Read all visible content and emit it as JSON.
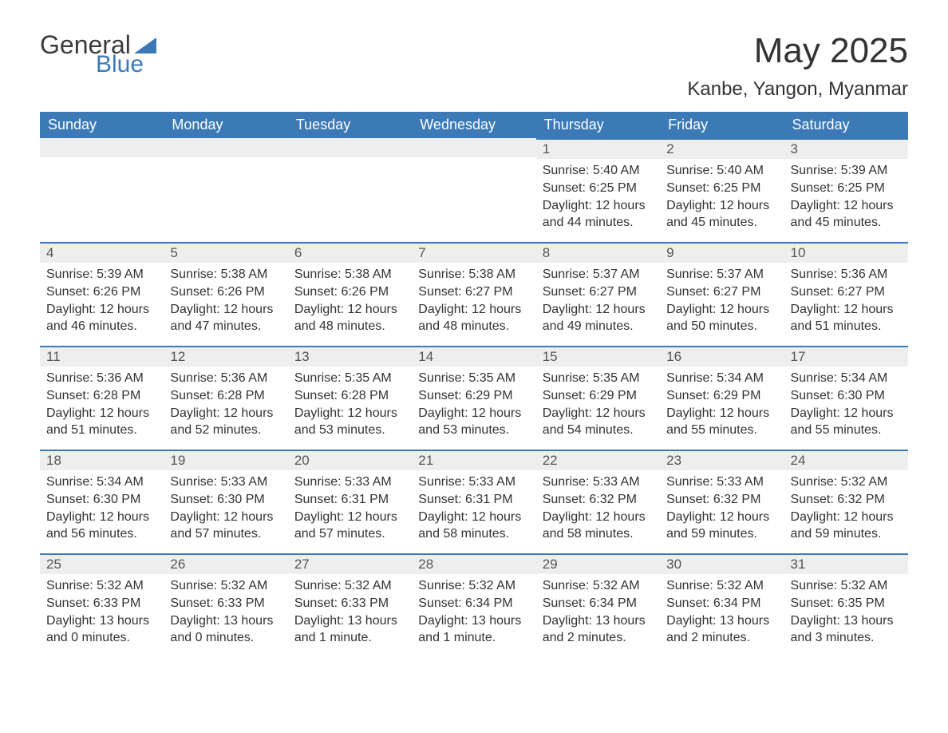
{
  "brand": {
    "word1": "General",
    "word2": "Blue",
    "logo_color": "#3b79b7",
    "text_color": "#3b3b3b"
  },
  "title": "May 2025",
  "location": "Kanbe, Yangon, Myanmar",
  "colors": {
    "header_bg": "#3b79b7",
    "header_text": "#ffffff",
    "daynum_bg": "#eeeeee",
    "daynum_border": "#3b79b7",
    "body_text": "#333333",
    "page_bg": "#ffffff"
  },
  "day_headers": [
    "Sunday",
    "Monday",
    "Tuesday",
    "Wednesday",
    "Thursday",
    "Friday",
    "Saturday"
  ],
  "weeks": [
    [
      null,
      null,
      null,
      null,
      {
        "n": "1",
        "sunrise": "5:40 AM",
        "sunset": "6:25 PM",
        "daylight": "12 hours and 44 minutes."
      },
      {
        "n": "2",
        "sunrise": "5:40 AM",
        "sunset": "6:25 PM",
        "daylight": "12 hours and 45 minutes."
      },
      {
        "n": "3",
        "sunrise": "5:39 AM",
        "sunset": "6:25 PM",
        "daylight": "12 hours and 45 minutes."
      }
    ],
    [
      {
        "n": "4",
        "sunrise": "5:39 AM",
        "sunset": "6:26 PM",
        "daylight": "12 hours and 46 minutes."
      },
      {
        "n": "5",
        "sunrise": "5:38 AM",
        "sunset": "6:26 PM",
        "daylight": "12 hours and 47 minutes."
      },
      {
        "n": "6",
        "sunrise": "5:38 AM",
        "sunset": "6:26 PM",
        "daylight": "12 hours and 48 minutes."
      },
      {
        "n": "7",
        "sunrise": "5:38 AM",
        "sunset": "6:27 PM",
        "daylight": "12 hours and 48 minutes."
      },
      {
        "n": "8",
        "sunrise": "5:37 AM",
        "sunset": "6:27 PM",
        "daylight": "12 hours and 49 minutes."
      },
      {
        "n": "9",
        "sunrise": "5:37 AM",
        "sunset": "6:27 PM",
        "daylight": "12 hours and 50 minutes."
      },
      {
        "n": "10",
        "sunrise": "5:36 AM",
        "sunset": "6:27 PM",
        "daylight": "12 hours and 51 minutes."
      }
    ],
    [
      {
        "n": "11",
        "sunrise": "5:36 AM",
        "sunset": "6:28 PM",
        "daylight": "12 hours and 51 minutes."
      },
      {
        "n": "12",
        "sunrise": "5:36 AM",
        "sunset": "6:28 PM",
        "daylight": "12 hours and 52 minutes."
      },
      {
        "n": "13",
        "sunrise": "5:35 AM",
        "sunset": "6:28 PM",
        "daylight": "12 hours and 53 minutes."
      },
      {
        "n": "14",
        "sunrise": "5:35 AM",
        "sunset": "6:29 PM",
        "daylight": "12 hours and 53 minutes."
      },
      {
        "n": "15",
        "sunrise": "5:35 AM",
        "sunset": "6:29 PM",
        "daylight": "12 hours and 54 minutes."
      },
      {
        "n": "16",
        "sunrise": "5:34 AM",
        "sunset": "6:29 PM",
        "daylight": "12 hours and 55 minutes."
      },
      {
        "n": "17",
        "sunrise": "5:34 AM",
        "sunset": "6:30 PM",
        "daylight": "12 hours and 55 minutes."
      }
    ],
    [
      {
        "n": "18",
        "sunrise": "5:34 AM",
        "sunset": "6:30 PM",
        "daylight": "12 hours and 56 minutes."
      },
      {
        "n": "19",
        "sunrise": "5:33 AM",
        "sunset": "6:30 PM",
        "daylight": "12 hours and 57 minutes."
      },
      {
        "n": "20",
        "sunrise": "5:33 AM",
        "sunset": "6:31 PM",
        "daylight": "12 hours and 57 minutes."
      },
      {
        "n": "21",
        "sunrise": "5:33 AM",
        "sunset": "6:31 PM",
        "daylight": "12 hours and 58 minutes."
      },
      {
        "n": "22",
        "sunrise": "5:33 AM",
        "sunset": "6:32 PM",
        "daylight": "12 hours and 58 minutes."
      },
      {
        "n": "23",
        "sunrise": "5:33 AM",
        "sunset": "6:32 PM",
        "daylight": "12 hours and 59 minutes."
      },
      {
        "n": "24",
        "sunrise": "5:32 AM",
        "sunset": "6:32 PM",
        "daylight": "12 hours and 59 minutes."
      }
    ],
    [
      {
        "n": "25",
        "sunrise": "5:32 AM",
        "sunset": "6:33 PM",
        "daylight": "13 hours and 0 minutes."
      },
      {
        "n": "26",
        "sunrise": "5:32 AM",
        "sunset": "6:33 PM",
        "daylight": "13 hours and 0 minutes."
      },
      {
        "n": "27",
        "sunrise": "5:32 AM",
        "sunset": "6:33 PM",
        "daylight": "13 hours and 1 minute."
      },
      {
        "n": "28",
        "sunrise": "5:32 AM",
        "sunset": "6:34 PM",
        "daylight": "13 hours and 1 minute."
      },
      {
        "n": "29",
        "sunrise": "5:32 AM",
        "sunset": "6:34 PM",
        "daylight": "13 hours and 2 minutes."
      },
      {
        "n": "30",
        "sunrise": "5:32 AM",
        "sunset": "6:34 PM",
        "daylight": "13 hours and 2 minutes."
      },
      {
        "n": "31",
        "sunrise": "5:32 AM",
        "sunset": "6:35 PM",
        "daylight": "13 hours and 3 minutes."
      }
    ]
  ],
  "labels": {
    "sunrise": "Sunrise: ",
    "sunset": "Sunset: ",
    "daylight": "Daylight: "
  }
}
